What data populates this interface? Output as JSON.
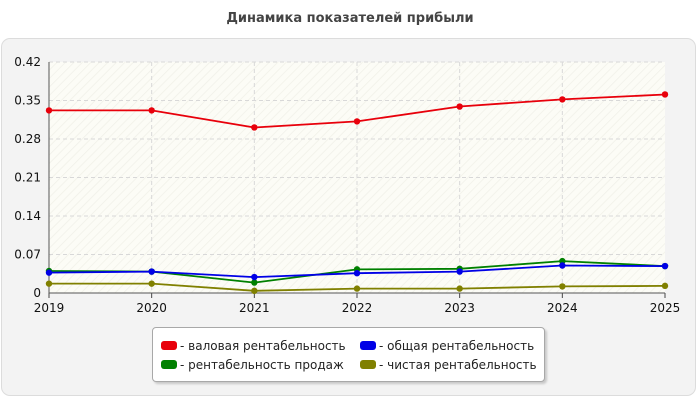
{
  "chart_data": {
    "type": "line",
    "title": "Динамика показателей прибыли",
    "xlabel": "",
    "ylabel": "",
    "x": [
      "2019",
      "2020",
      "2021",
      "2022",
      "2023",
      "2024",
      "2025"
    ],
    "ylim": [
      0,
      0.42
    ],
    "yticks": [
      "0",
      "0.07",
      "0.14",
      "0.21",
      "0.28",
      "0.35",
      "0.42"
    ],
    "grid": true,
    "legend_position": "bottom",
    "series": [
      {
        "name": "- валовая рентабельность",
        "color": "#e8000b",
        "values": [
          0.332,
          0.332,
          0.301,
          0.312,
          0.339,
          0.352,
          0.361
        ]
      },
      {
        "name": "- общая рентабельность",
        "color": "#0000e6",
        "values": [
          0.037,
          0.039,
          0.029,
          0.036,
          0.039,
          0.05,
          0.049
        ]
      },
      {
        "name": "- рентабельность продаж",
        "color": "#008000",
        "values": [
          0.04,
          0.039,
          0.019,
          0.043,
          0.044,
          0.058,
          0.049
        ]
      },
      {
        "name": "- чистая рентабельность",
        "color": "#808000",
        "values": [
          0.017,
          0.017,
          0.004,
          0.008,
          0.008,
          0.012,
          0.013
        ]
      }
    ]
  }
}
